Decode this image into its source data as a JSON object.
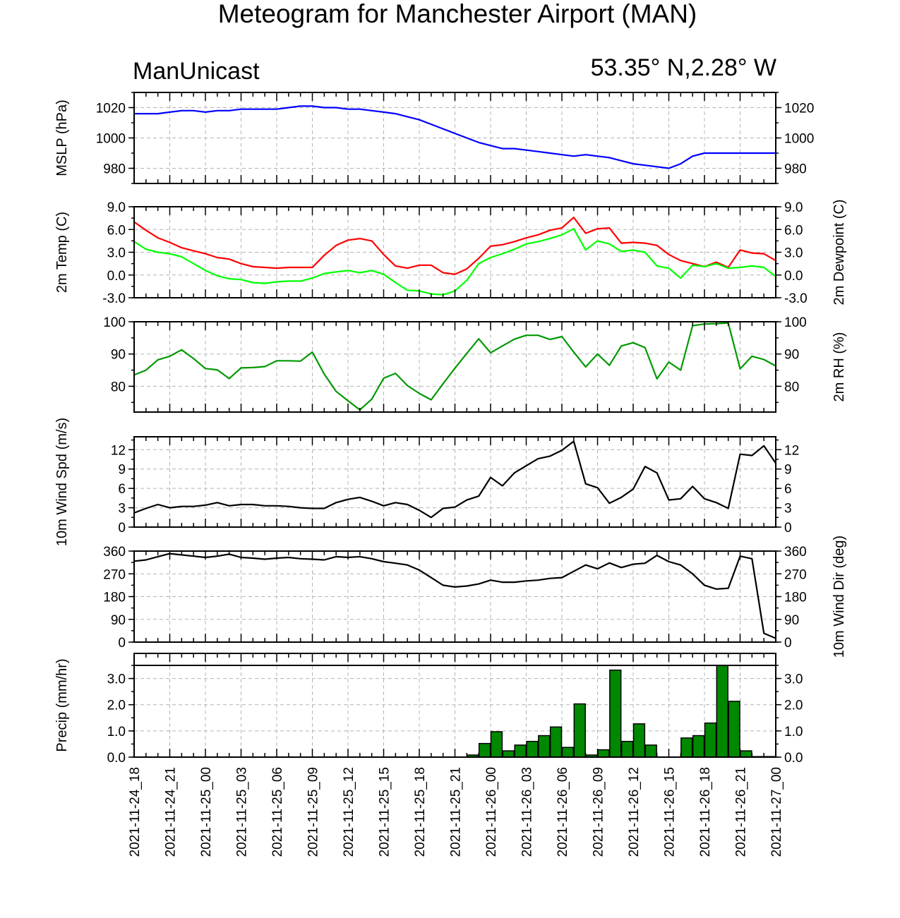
{
  "page": {
    "title": "Meteogram for Manchester Airport (MAN)",
    "left_label": "ManUnicast",
    "right_label": "53.35° N,2.28° W"
  },
  "chart_data": {
    "type": "line",
    "x_tick_labels": [
      "2021-11-24_18",
      "2021-11-24_21",
      "2021-11-25_00",
      "2021-11-25_03",
      "2021-11-25_06",
      "2021-11-25_09",
      "2021-11-25_12",
      "2021-11-25_15",
      "2021-11-25_18",
      "2021-11-25_21",
      "2021-11-26_00",
      "2021-11-26_03",
      "2021-11-26_06",
      "2021-11-26_09",
      "2021-11-26_12",
      "2021-11-26_15",
      "2021-11-26_18",
      "2021-11-26_21",
      "2021-11-27_00"
    ],
    "x_hours_from_first_tick": [
      0,
      1,
      2,
      3,
      4,
      5,
      6,
      7,
      8,
      9,
      10,
      11,
      12,
      13,
      14,
      15,
      16,
      17,
      18,
      19,
      20,
      21,
      22,
      23,
      24,
      25,
      26,
      27,
      28,
      29,
      30,
      31,
      32,
      33,
      34,
      35,
      36,
      37,
      38,
      39,
      40,
      41,
      42,
      43,
      44,
      45,
      46,
      47,
      48,
      49,
      50,
      51,
      52,
      53,
      54
    ],
    "grid": true,
    "panels": [
      {
        "type": "line",
        "ylabel_left": "MSLP (hPa)",
        "ylabel_right": "",
        "ylim": [
          970,
          1030
        ],
        "yticks": [
          980,
          1000,
          1020
        ],
        "ytick_labels": [
          "980",
          "1000",
          "1020"
        ],
        "series": [
          {
            "color": "#0000ff",
            "values": [
              1016,
              1016,
              1016,
              1017,
              1018,
              1018,
              1017,
              1018,
              1018,
              1019,
              1019,
              1019,
              1019,
              1020,
              1021,
              1021,
              1020,
              1020,
              1019,
              1019,
              1018,
              1017,
              1016,
              1014,
              1012,
              1009,
              1006,
              1003,
              1000,
              997,
              995,
              993,
              993,
              992,
              991,
              990,
              989,
              988,
              989,
              988,
              987,
              985,
              983,
              982,
              981,
              980,
              983,
              988,
              990,
              990,
              990,
              990,
              990,
              990,
              990
            ]
          }
        ]
      },
      {
        "type": "line",
        "ylabel_left": "2m Temp (C)",
        "ylabel_right": "2m Dewpoint (C)",
        "ylim": [
          -3.0,
          9.0
        ],
        "yticks": [
          -3.0,
          0.0,
          3.0,
          6.0,
          9.0
        ],
        "ytick_labels": [
          "-3.0",
          "0.0",
          "3.0",
          "6.0",
          "9.0"
        ],
        "series": [
          {
            "color": "#ff0000",
            "values": [
              7.0,
              5.9,
              4.9,
              4.3,
              3.6,
              3.2,
              2.8,
              2.3,
              2.1,
              1.5,
              1.1,
              1.0,
              0.9,
              1.0,
              1.0,
              1.0,
              2.6,
              3.9,
              4.6,
              4.8,
              4.5,
              2.7,
              1.2,
              0.9,
              1.3,
              1.3,
              0.3,
              0.1,
              0.8,
              2.2,
              3.8,
              4.0,
              4.4,
              4.9,
              5.3,
              5.9,
              6.2,
              7.6,
              5.5,
              6.1,
              6.2,
              4.2,
              4.3,
              4.2,
              3.9,
              2.7,
              1.9,
              1.5,
              1.1,
              1.7,
              1.0,
              3.3,
              2.9,
              2.8,
              1.9
            ]
          },
          {
            "color": "#00ff00",
            "values": [
              4.4,
              3.4,
              3.0,
              2.8,
              2.4,
              1.5,
              0.6,
              -0.1,
              -0.5,
              -0.6,
              -1.0,
              -1.1,
              -0.9,
              -0.8,
              -0.8,
              -0.4,
              0.2,
              0.4,
              0.6,
              0.3,
              0.6,
              0.1,
              -1.0,
              -2.0,
              -2.1,
              -2.5,
              -2.6,
              -2.1,
              -0.7,
              1.5,
              2.3,
              2.8,
              3.4,
              4.1,
              4.4,
              4.8,
              5.3,
              6.1,
              3.3,
              4.5,
              4.1,
              3.1,
              3.3,
              3.0,
              1.2,
              0.9,
              -0.4,
              1.3,
              1.1,
              1.5,
              0.9,
              1.0,
              1.2,
              1.0,
              -0.2
            ]
          }
        ]
      },
      {
        "type": "line",
        "ylabel_left": "",
        "ylabel_right": "2m RH (%)",
        "ylim": [
          72,
          100
        ],
        "yticks": [
          80,
          90,
          100
        ],
        "ytick_labels": [
          "80",
          "90",
          "100"
        ],
        "series": [
          {
            "color": "#009900",
            "values": [
              83.5,
              85.0,
              88.2,
              89.3,
              91.3,
              88.6,
              85.5,
              85.1,
              82.4,
              85.7,
              85.8,
              86.1,
              87.9,
              87.9,
              87.8,
              90.6,
              83.8,
              78.4,
              75.5,
              72.7,
              76.0,
              82.5,
              84.0,
              80.2,
              77.8,
              75.8,
              80.8,
              85.6,
              90.2,
              94.7,
              90.4,
              92.5,
              94.6,
              95.8,
              95.8,
              94.5,
              95.4,
              90.6,
              86.0,
              90.0,
              86.5,
              92.5,
              93.5,
              92.0,
              82.3,
              87.5,
              85.0,
              98.8,
              99.3,
              99.4,
              99.6,
              85.4,
              89.3,
              88.3,
              86.3
            ]
          }
        ]
      },
      {
        "type": "line",
        "ylabel_left": "10m Wind Spd (m/s)",
        "ylabel_right": "",
        "ylim": [
          0,
          14
        ],
        "yticks": [
          0,
          3,
          6,
          9,
          12
        ],
        "ytick_labels": [
          "0",
          "3",
          "6",
          "9",
          "12"
        ],
        "series": [
          {
            "color": "#000000",
            "values": [
              2.2,
              2.9,
              3.5,
              3.0,
              3.2,
              3.2,
              3.4,
              3.8,
              3.3,
              3.5,
              3.5,
              3.3,
              3.3,
              3.2,
              3.0,
              2.9,
              2.9,
              3.8,
              4.3,
              4.6,
              4.0,
              3.3,
              3.8,
              3.5,
              2.6,
              1.5,
              2.9,
              3.1,
              4.2,
              4.8,
              7.7,
              6.4,
              8.4,
              9.5,
              10.6,
              11.0,
              11.9,
              13.3,
              6.7,
              6.1,
              3.7,
              4.6,
              5.9,
              9.4,
              8.4,
              4.2,
              4.4,
              6.3,
              4.4,
              3.8,
              2.9,
              11.3,
              11.1,
              12.6,
              9.9
            ]
          }
        ]
      },
      {
        "type": "line",
        "ylabel_left": "",
        "ylabel_right": "10m Wind Dir (deg)",
        "ylim": [
          0,
          360
        ],
        "yticks": [
          0,
          90,
          180,
          270,
          360
        ],
        "ytick_labels": [
          "0",
          "90",
          "180",
          "270",
          "360"
        ],
        "series": [
          {
            "color": "#000000",
            "values": [
              320,
              325,
              338,
              350,
              345,
              340,
              335,
              340,
              348,
              335,
              332,
              328,
              332,
              335,
              330,
              328,
              325,
              338,
              335,
              338,
              330,
              318,
              312,
              305,
              285,
              255,
              225,
              218,
              222,
              230,
              245,
              237,
              237,
              242,
              245,
              252,
              255,
              280,
              305,
              290,
              313,
              295,
              308,
              312,
              343,
              318,
              305,
              270,
              225,
              210,
              213,
              340,
              330,
              35,
              15
            ]
          }
        ]
      },
      {
        "type": "bar",
        "ylabel_left": "Precip (mm/hr)",
        "ylabel_right": "",
        "ylim": [
          0,
          3.5
        ],
        "yticks": [
          0.0,
          1.0,
          2.0,
          3.0
        ],
        "ytick_labels": [
          "0.0",
          "1.0",
          "2.0",
          "3.0"
        ],
        "bar_color": "#008800",
        "values": [
          0,
          0,
          0,
          0,
          0,
          0,
          0,
          0,
          0,
          0,
          0,
          0,
          0,
          0,
          0,
          0,
          0,
          0,
          0,
          0,
          0,
          0,
          0,
          0,
          0,
          0,
          0,
          0,
          0.08,
          0.52,
          0.97,
          0.24,
          0.46,
          0.6,
          0.82,
          1.15,
          0.37,
          2.03,
          0.08,
          0.28,
          3.32,
          0.6,
          1.27,
          0.46,
          0,
          0,
          0.73,
          0.82,
          1.3,
          3.5,
          2.13,
          0.24,
          0.02,
          0.02
        ]
      }
    ]
  }
}
